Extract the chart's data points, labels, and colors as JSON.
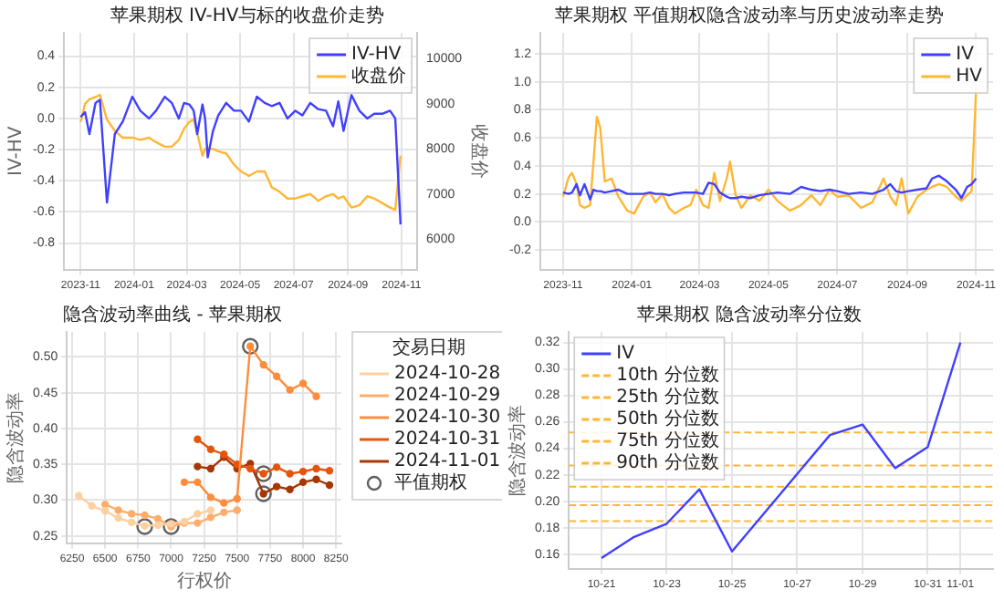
{
  "chart_data": [
    {
      "type": "line",
      "title": "苹果期权 IV-HV与标的收盘价走势",
      "ylabel": "IV-HV",
      "y2label": "收盘价",
      "x": [
        "2023-11-01",
        "2023-11-06",
        "2023-11-11",
        "2023-11-18",
        "2023-11-23",
        "2023-12-01",
        "2023-12-10",
        "2023-12-19",
        "2023-12-30",
        "2024-01-08",
        "2024-01-18",
        "2024-01-26",
        "2024-02-05",
        "2024-02-13",
        "2024-02-21",
        "2024-02-27",
        "2024-03-04",
        "2024-03-09",
        "2024-03-13",
        "2024-03-19",
        "2024-03-22",
        "2024-03-25",
        "2024-03-31",
        "2024-04-06",
        "2024-04-15",
        "2024-04-24",
        "2024-05-02",
        "2024-05-11",
        "2024-05-20",
        "2024-05-29",
        "2024-06-06",
        "2024-06-15",
        "2024-06-24",
        "2024-07-03",
        "2024-07-11",
        "2024-07-20",
        "2024-07-29",
        "2024-08-07",
        "2024-08-15",
        "2024-08-21",
        "2024-08-27",
        "2024-09-05",
        "2024-09-14",
        "2024-09-23",
        "2024-10-01",
        "2024-10-10",
        "2024-10-19",
        "2024-10-25",
        "2024-10-31"
      ],
      "series": [
        {
          "name": "IV-HV",
          "color": "#4040ff",
          "values": [
            0.01,
            0.04,
            -0.1,
            0.1,
            0.12,
            -0.54,
            -0.1,
            -0.02,
            0.14,
            0.05,
            0.0,
            0.05,
            0.14,
            0.1,
            0.0,
            0.1,
            0.09,
            0.05,
            -0.1,
            0.09,
            0.0,
            -0.25,
            -0.08,
            0.02,
            0.1,
            0.05,
            0.05,
            -0.02,
            0.14,
            0.1,
            0.08,
            0.1,
            0.0,
            0.05,
            0.02,
            0.1,
            0.06,
            0.05,
            -0.05,
            0.11,
            -0.08,
            0.15,
            0.05,
            0.0,
            0.03,
            0.03,
            0.05,
            0.0,
            -0.68
          ]
        },
        {
          "name": "收盘价",
          "color": "#ffb733",
          "axis": "y2",
          "values": [
            8600,
            9000,
            9100,
            9150,
            9200,
            8650,
            8400,
            8250,
            8250,
            8200,
            8250,
            8150,
            8050,
            8050,
            8200,
            8450,
            8600,
            8650,
            8350,
            7850,
            8000,
            8000,
            8000,
            7950,
            7900,
            7650,
            7500,
            7400,
            7500,
            7500,
            7150,
            7050,
            6900,
            6900,
            6950,
            7000,
            6850,
            6950,
            7000,
            6900,
            6950,
            6700,
            6750,
            6950,
            6900,
            6800,
            6700,
            6650,
            7850
          ]
        }
      ],
      "xlim": [
        "2023-10-13",
        "2024-11-19"
      ],
      "xticks": [
        "2023-11",
        "2024-01",
        "2024-03",
        "2024-05",
        "2024-07",
        "2024-09",
        "2024-11"
      ],
      "ylim": [
        -0.97,
        0.55
      ],
      "yticks": [
        -0.8,
        -0.6,
        -0.4,
        -0.2,
        {
          "value": 0,
          "label": "0.0"
        },
        0.2,
        0.4
      ],
      "y2lim": [
        5325,
        10575
      ],
      "y2ticks": [
        6000,
        7000,
        8000,
        9000,
        10000
      ],
      "grid": true,
      "legend": "top right",
      "marker": "none"
    },
    {
      "type": "line",
      "title": "苹果期权 平值期权隐含波动率与历史波动率走势",
      "x": [
        "2023-11-01",
        "2023-11-06",
        "2023-11-09",
        "2023-11-13",
        "2023-11-16",
        "2023-11-20",
        "2023-11-25",
        "2023-11-28",
        "2023-12-01",
        "2023-12-04",
        "2023-12-08",
        "2023-12-14",
        "2023-12-20",
        "2023-12-28",
        "2024-01-03",
        "2024-01-11",
        "2024-01-17",
        "2024-01-22",
        "2024-01-28",
        "2024-02-03",
        "2024-02-08",
        "2024-02-16",
        "2024-02-22",
        "2024-02-27",
        "2024-03-04",
        "2024-03-09",
        "2024-03-14",
        "2024-03-19",
        "2024-03-25",
        "2024-03-28",
        "2024-04-02",
        "2024-04-07",
        "2024-04-15",
        "2024-04-23",
        "2024-05-01",
        "2024-05-09",
        "2024-05-20",
        "2024-05-30",
        "2024-06-08",
        "2024-06-16",
        "2024-06-24",
        "2024-07-01",
        "2024-07-11",
        "2024-07-22",
        "2024-08-01",
        "2024-08-11",
        "2024-08-17",
        "2024-08-22",
        "2024-08-27",
        "2024-09-02",
        "2024-09-10",
        "2024-09-18",
        "2024-09-23",
        "2024-09-29",
        "2024-10-06",
        "2024-10-14",
        "2024-10-19",
        "2024-10-24",
        "2024-10-28",
        "2024-11-01"
      ],
      "series": [
        {
          "name": "IV",
          "color": "#4040ff",
          "values": [
            0.21,
            0.2,
            0.21,
            0.27,
            0.19,
            0.27,
            0.16,
            0.23,
            0.22,
            0.22,
            0.21,
            0.22,
            0.23,
            0.2,
            0.2,
            0.2,
            0.21,
            0.2,
            0.2,
            0.19,
            0.2,
            0.21,
            0.21,
            0.21,
            0.2,
            0.28,
            0.27,
            0.21,
            0.18,
            0.17,
            0.17,
            0.18,
            0.17,
            0.19,
            0.2,
            0.21,
            0.2,
            0.25,
            0.23,
            0.22,
            0.23,
            0.22,
            0.2,
            0.21,
            0.2,
            0.23,
            0.27,
            0.22,
            0.21,
            0.22,
            0.23,
            0.24,
            0.31,
            0.33,
            0.29,
            0.23,
            0.17,
            0.25,
            0.27,
            0.31
          ]
        },
        {
          "name": "HV",
          "color": "#ffb733",
          "values": [
            0.18,
            0.32,
            0.35,
            0.27,
            0.12,
            0.1,
            0.12,
            0.43,
            0.75,
            0.67,
            0.29,
            0.31,
            0.18,
            0.08,
            0.06,
            0.18,
            0.21,
            0.14,
            0.2,
            0.1,
            0.06,
            0.1,
            0.12,
            0.23,
            0.12,
            0.1,
            0.35,
            0.15,
            0.31,
            0.43,
            0.19,
            0.1,
            0.19,
            0.15,
            0.23,
            0.15,
            0.08,
            0.12,
            0.19,
            0.12,
            0.23,
            0.18,
            0.19,
            0.1,
            0.14,
            0.31,
            0.18,
            0.12,
            0.31,
            0.06,
            0.18,
            0.23,
            0.25,
            0.27,
            0.25,
            0.18,
            0.15,
            0.19,
            0.22,
            0.95
          ]
        }
      ],
      "xlim": [
        "2023-10-12",
        "2024-11-16"
      ],
      "xticks": [
        "2023-11",
        "2024-01",
        "2024-03",
        "2024-05",
        "2024-07",
        "2024-09",
        "2024-11"
      ],
      "ylim": [
        -0.34,
        1.35
      ],
      "yticks": [
        -0.2,
        {
          "value": 0,
          "label": "0.0"
        },
        0.2,
        0.4,
        0.6,
        0.8,
        {
          "value": 1,
          "label": "1.0"
        },
        1.2
      ],
      "grid": true,
      "legend": "top right",
      "marker": "none"
    },
    {
      "type": "line",
      "title": "隐含波动率曲线 - 苹果期权",
      "xlabel": "行权价",
      "ylabel": "隐含波动率",
      "legend_title": "交易日期",
      "series": [
        {
          "name": "2024-10-28",
          "color": "#fdd0a2",
          "x": [
            6300,
            6400,
            6500,
            6600,
            6700,
            6800,
            6900,
            7000,
            7100,
            7200,
            7300
          ],
          "values": [
            0.306,
            0.292,
            0.285,
            0.275,
            0.269,
            0.264,
            0.265,
            0.267,
            0.27,
            0.281,
            0.286
          ]
        },
        {
          "name": "2024-10-29",
          "color": "#fdae6b",
          "x": [
            6500,
            6600,
            6700,
            6800,
            6900,
            7000,
            7100,
            7200,
            7300,
            7400,
            7500
          ],
          "values": [
            0.294,
            0.286,
            0.281,
            0.279,
            0.274,
            0.263,
            0.268,
            0.268,
            0.276,
            0.283,
            0.286
          ]
        },
        {
          "name": "2024-10-30",
          "color": "#fd8d3c",
          "x": [
            7100,
            7200,
            7300,
            7400,
            7500,
            7600,
            7700,
            7800,
            7900,
            8000,
            8100
          ],
          "values": [
            0.325,
            0.325,
            0.304,
            0.296,
            0.302,
            0.515,
            0.489,
            0.473,
            0.454,
            0.463,
            0.445
          ]
        },
        {
          "name": "2024-10-31",
          "color": "#e6550d",
          "x": [
            7200,
            7300,
            7400,
            7500,
            7600,
            7700,
            7800,
            7900,
            8000,
            8100,
            8200
          ],
          "values": [
            0.385,
            0.371,
            0.364,
            0.35,
            0.344,
            0.337,
            0.346,
            0.337,
            0.34,
            0.344,
            0.341
          ]
        },
        {
          "name": "2024-11-01",
          "color": "#a63603",
          "x": [
            7200,
            7300,
            7400,
            7500,
            7600,
            7700,
            7800,
            7900,
            8000,
            8100,
            8200
          ],
          "values": [
            0.347,
            0.344,
            0.36,
            0.344,
            0.351,
            0.309,
            0.319,
            0.315,
            0.325,
            0.329,
            0.321
          ]
        },
        {
          "name": "平值期权",
          "type": "scatter",
          "color": "#606060",
          "x": [
            6800,
            7000,
            7600,
            7700,
            7700
          ],
          "values": [
            0.263,
            0.263,
            0.515,
            0.337,
            0.309
          ]
        }
      ],
      "xlim": [
        6210,
        8290
      ],
      "xticks": [
        6250,
        6500,
        6750,
        7000,
        7250,
        7500,
        7750,
        8000,
        8250
      ],
      "ylim": [
        0.24,
        0.535
      ],
      "yticks": [
        0.25,
        {
          "value": 0.3,
          "label": "0.30"
        },
        0.35,
        {
          "value": 0.4,
          "label": "0.40"
        },
        0.45,
        {
          "value": 0.5,
          "label": "0.50"
        }
      ],
      "grid": true,
      "legend": "right",
      "marker": "circle"
    },
    {
      "type": "line",
      "title": "苹果期权 隐含波动率分位数",
      "ylabel": "隐含波动率",
      "x": [
        "--10-21",
        "--10-22",
        "--10-23",
        "--10-24",
        "--10-25",
        "--10-28",
        "--10-29",
        "--10-30",
        "--10-31",
        "--11-01"
      ],
      "series": [
        {
          "name": "IV",
          "color": "#4040ff",
          "values": [
            0.157,
            0.173,
            0.183,
            0.209,
            0.162,
            0.25,
            0.258,
            0.225,
            0.241,
            0.32
          ]
        }
      ],
      "ref_lines": [
        {
          "axis": "y",
          "value": 0.185,
          "label": "10th 分位数",
          "color": "#ffb733",
          "line_style": "dashed"
        },
        {
          "axis": "y",
          "value": 0.197,
          "label": "25th 分位数",
          "color": "#ffb733",
          "line_style": "dashed"
        },
        {
          "axis": "y",
          "value": 0.211,
          "label": "50th 分位数",
          "color": "#ffb733",
          "line_style": "dashed"
        },
        {
          "axis": "y",
          "value": 0.227,
          "label": "75th 分位数",
          "color": "#ffb733",
          "line_style": "dashed"
        },
        {
          "axis": "y",
          "value": 0.252,
          "label": "90th 分位数",
          "color": "#ffb733",
          "line_style": "dashed"
        }
      ],
      "xlim": [
        "--10-20",
        "--11-02"
      ],
      "xticks": [
        {
          "value": "--10-21",
          "label": "10-21"
        },
        {
          "value": "--10-23",
          "label": "10-23"
        },
        {
          "value": "--10-25",
          "label": "10-25"
        },
        {
          "value": "--10-27",
          "label": "10-27"
        },
        {
          "value": "--10-29",
          "label": "10-29"
        },
        {
          "value": "--10-31",
          "label": "10-31"
        },
        {
          "value": "--11-01",
          "label": "11-01"
        }
      ],
      "ylim": [
        0.149,
        0.328
      ],
      "yticks": [
        0.16,
        0.18,
        {
          "value": 0.2,
          "label": "0.20"
        },
        0.22,
        0.24,
        0.26,
        0.28,
        {
          "value": 0.3,
          "label": "0.30"
        },
        0.32
      ],
      "grid": true,
      "legend": "top left",
      "marker": "none"
    }
  ]
}
